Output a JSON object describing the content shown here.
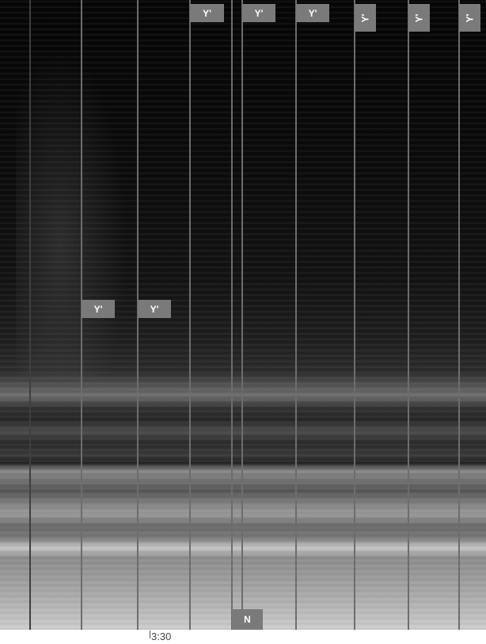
{
  "markers": [
    "Y'",
    "Y'",
    "Y'",
    "Y'",
    "Y'",
    "Y'",
    "Y'",
    "Y'",
    "N"
  ],
  "time_label": "3:30"
}
